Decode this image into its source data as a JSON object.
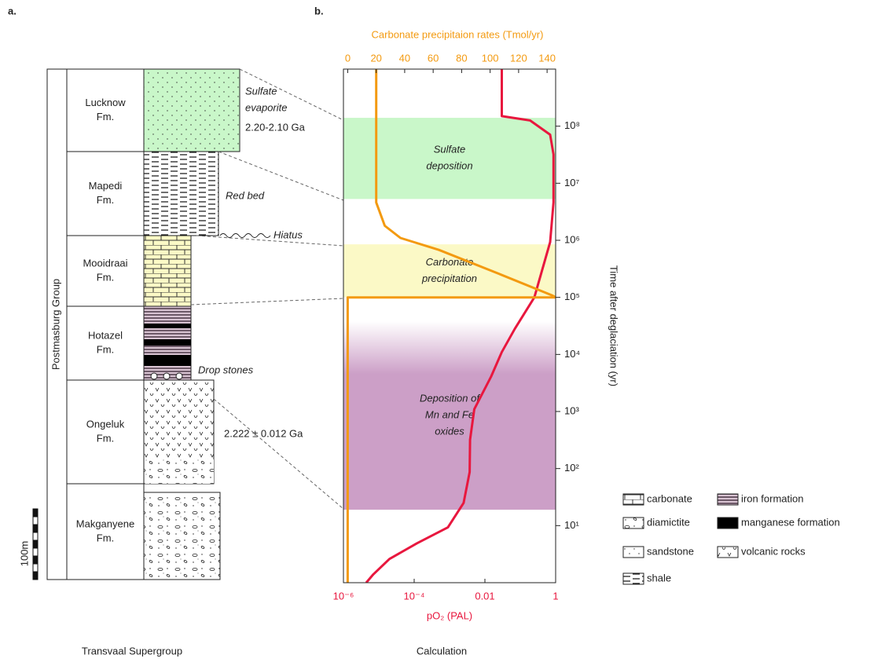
{
  "panel_a": {
    "label": "a.",
    "group": "Postmasburg Group",
    "formations": [
      {
        "name": [
          "Lucknow",
          "Fm."
        ]
      },
      {
        "name": [
          "Mapedi",
          "Fm."
        ]
      },
      {
        "name": [
          "Mooidraai",
          "Fm."
        ]
      },
      {
        "name": [
          "Hotazel",
          "Fm."
        ]
      },
      {
        "name": [
          "Ongeluk",
          "Fm."
        ]
      },
      {
        "name": [
          "Makganyene",
          "Fm."
        ]
      }
    ],
    "annotations": [
      {
        "lines": [
          "Sulfate",
          "evaporite"
        ]
      },
      {
        "lines": [
          "2.20-2.10 Ga"
        ]
      },
      {
        "lines": [
          "Red bed"
        ]
      },
      {
        "lines": [
          "Hiatus"
        ]
      },
      {
        "lines": [
          "Drop stones"
        ]
      },
      {
        "lines": [
          "2.222 ± 0.012 Ga"
        ]
      }
    ],
    "scale": "100m",
    "caption": "Transvaal Supergroup"
  },
  "chart_data": {
    "type": "line",
    "label": "b.",
    "caption": "Calculation",
    "xlabel": "pO₂ (PAL)",
    "xscale": "log",
    "xlim": [
      1e-06,
      1
    ],
    "xticks": [
      {
        "value": 1e-06,
        "label": "10⁻⁶"
      },
      {
        "value": 0.0001,
        "label": "10⁻⁴"
      },
      0.01,
      1
    ],
    "x2label": "Carbonate precipitaion rates (Tmol/yr)",
    "x2lim": [
      -3,
      146
    ],
    "x2ticks": [
      0,
      20,
      40,
      60,
      80,
      100,
      120,
      140
    ],
    "ylabel": "Time after deglaciation (yr)",
    "yscale": "log",
    "ylim": [
      1,
      1000000000
    ],
    "yticks": [
      {
        "value": 10,
        "label": "10¹"
      },
      {
        "value": 100,
        "label": "10²"
      },
      {
        "value": 1000,
        "label": "10³"
      },
      {
        "value": 10000,
        "label": "10⁴"
      },
      {
        "value": 100000,
        "label": "10⁵"
      },
      {
        "value": 1000000,
        "label": "10⁶"
      },
      {
        "value": 10000000,
        "label": "10⁷"
      },
      {
        "value": 100000000,
        "label": "10⁸"
      }
    ],
    "bands": [
      {
        "label": [
          "Sulfate",
          "deposition"
        ],
        "from": 5300000,
        "to": 140000000,
        "color": "#c9f7c9"
      },
      {
        "label": [
          "Carbonate",
          "precipitation"
        ],
        "from": 100000,
        "to": 850000,
        "color": "#fbf9c6"
      },
      {
        "label": [
          "Deposition of",
          "Mn and Fe",
          "oxides"
        ],
        "from": 19,
        "to": 38000,
        "color": "#cc9fc7"
      }
    ],
    "series": [
      {
        "axis": "x",
        "color": "#e8173e",
        "x": [
          0.03,
          0.03,
          0.19,
          0.7,
          0.87,
          0.87,
          0.7,
          0.25,
          0.07,
          0.03,
          0.015,
          0.005,
          0.0038,
          0.0037,
          0.0025,
          0.0009,
          0.00012,
          2e-05,
          7e-06,
          4.4e-06
        ],
        "y": [
          1000000000,
          150000000,
          126000000,
          71000000,
          32000000,
          4600000,
          930000,
          100000,
          28000,
          11000,
          4100,
          1100,
          320,
          87,
          25,
          9.3,
          4.9,
          2.6,
          1.4,
          1
        ]
      },
      {
        "axis": "x2",
        "color": "#f39a10",
        "x": [
          20,
          20,
          20,
          26,
          37,
          64,
          106,
          144,
          146,
          0,
          0
        ],
        "y": [
          1000000000,
          10000000,
          4600000,
          1800000,
          1100000,
          680000,
          260000,
          107000,
          100000,
          100000,
          1
        ]
      }
    ]
  },
  "legend": [
    "carbonate",
    "iron formation",
    "diamictite",
    "manganese formation",
    "sandstone",
    "volcanic rocks",
    "shale"
  ]
}
